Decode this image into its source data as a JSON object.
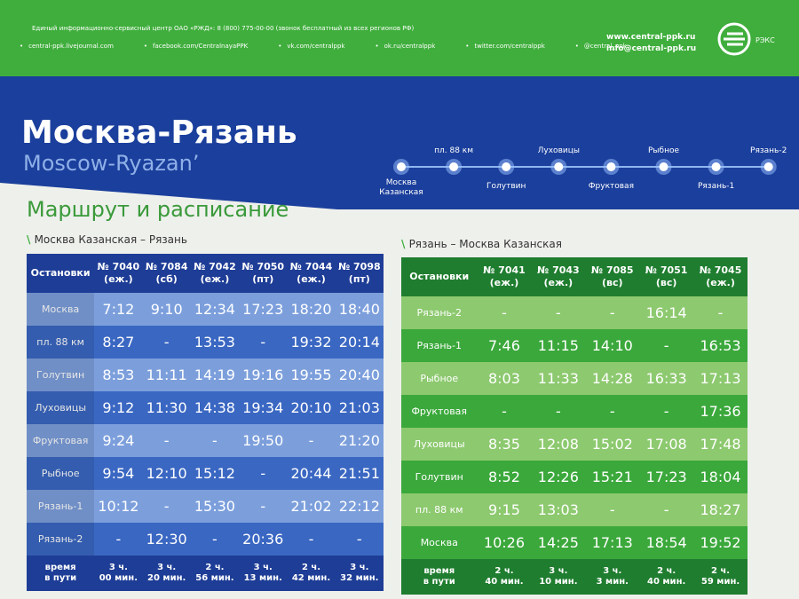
{
  "header": {
    "info": "Единый информационно-сервисный центр ОАО «РЖД»: 8 (800) 775-00-00 (звонок бесплатный из всех регионов РФ)",
    "links": [
      "central-ppk.livejournal.com",
      "facebook.com/CentralnayaPPK",
      "vk.com/centralppk",
      "ok.ru/centralppk",
      "twitter.com/centralppk",
      "@central_ppk"
    ],
    "site": "www.central-ppk.ru",
    "email": "info@central-ppk.ru",
    "logo": "РЭКС"
  },
  "title": "Москва-Рязань",
  "subtitle": "Moscow-Ryazan’",
  "route": [
    "Москва Казанская",
    "пл. 88 км",
    "Голутвин",
    "Луховицы",
    "Фруктовая",
    "Рыбное",
    "Рязань-1",
    "Рязань-2"
  ],
  "section": "Маршрут и расписание",
  "tables": [
    {
      "title": "Москва Казанская – Рязань",
      "stop_header": "Остановки",
      "trains": [
        [
          "№ 7040",
          "(еж.)"
        ],
        [
          "№ 7084",
          "(сб)"
        ],
        [
          "№ 7042",
          "(еж.)"
        ],
        [
          "№ 7050",
          "(пт)"
        ],
        [
          "№ 7044",
          "(еж.)"
        ],
        [
          "№ 7098",
          "(пт)"
        ]
      ],
      "rows": [
        [
          "Москва",
          "7:12",
          "9:10",
          "12:34",
          "17:23",
          "18:20",
          "18:40"
        ],
        [
          "пл. 88 км",
          "8:27",
          "-",
          "13:53",
          "-",
          "19:32",
          "20:14"
        ],
        [
          "Голутвин",
          "8:53",
          "11:11",
          "14:19",
          "19:16",
          "19:55",
          "20:40"
        ],
        [
          "Луховицы",
          "9:12",
          "11:30",
          "14:38",
          "19:34",
          "20:10",
          "21:03"
        ],
        [
          "Фруктовая",
          "9:24",
          "-",
          "-",
          "19:50",
          "-",
          "21:20"
        ],
        [
          "Рыбное",
          "9:54",
          "12:10",
          "15:12",
          "-",
          "20:44",
          "21:51"
        ],
        [
          "Рязань-1",
          "10:12",
          "-",
          "15:30",
          "-",
          "21:02",
          "22:12"
        ],
        [
          "Рязань-2",
          "-",
          "12:30",
          "-",
          "20:36",
          "-",
          "-"
        ]
      ],
      "travel_label": [
        "время",
        "в пути"
      ],
      "travel": [
        [
          "3 ч.",
          "00 мин."
        ],
        [
          "3 ч.",
          "20 мин."
        ],
        [
          "2 ч.",
          "56 мин."
        ],
        [
          "3 ч.",
          "13 мин."
        ],
        [
          "2 ч.",
          "42 мин."
        ],
        [
          "3 ч.",
          "32 мин."
        ]
      ]
    },
    {
      "title": "Рязань – Москва Казанская",
      "stop_header": "Остановки",
      "trains": [
        [
          "№ 7041",
          "(еж.)"
        ],
        [
          "№ 7043",
          "(еж.)"
        ],
        [
          "№ 7085",
          "(вс)"
        ],
        [
          "№ 7051",
          "(вс)"
        ],
        [
          "№ 7045",
          "(еж.)"
        ]
      ],
      "rows": [
        [
          "Рязань-2",
          "-",
          "-",
          "-",
          "16:14",
          "-"
        ],
        [
          "Рязань-1",
          "7:46",
          "11:15",
          "14:10",
          "-",
          "16:53"
        ],
        [
          "Рыбное",
          "8:03",
          "11:33",
          "14:28",
          "16:33",
          "17:13"
        ],
        [
          "Фруктовая",
          "-",
          "-",
          "-",
          "-",
          "17:36"
        ],
        [
          "Луховицы",
          "8:35",
          "12:08",
          "15:02",
          "17:08",
          "17:48"
        ],
        [
          "Голутвин",
          "8:52",
          "12:26",
          "15:21",
          "17:23",
          "18:04"
        ],
        [
          "пл. 88 км",
          "9:15",
          "13:03",
          "-",
          "-",
          "18:27"
        ],
        [
          "Москва",
          "10:26",
          "14:25",
          "17:13",
          "18:54",
          "19:52"
        ]
      ],
      "travel_label": [
        "время",
        "в пути"
      ],
      "travel": [
        [
          "2 ч.",
          "40 мин."
        ],
        [
          "3 ч.",
          "10 мин."
        ],
        [
          "3 ч.",
          "3 мин."
        ],
        [
          "2 ч.",
          "40 мин."
        ],
        [
          "2 ч.",
          "59 мин."
        ]
      ]
    }
  ]
}
